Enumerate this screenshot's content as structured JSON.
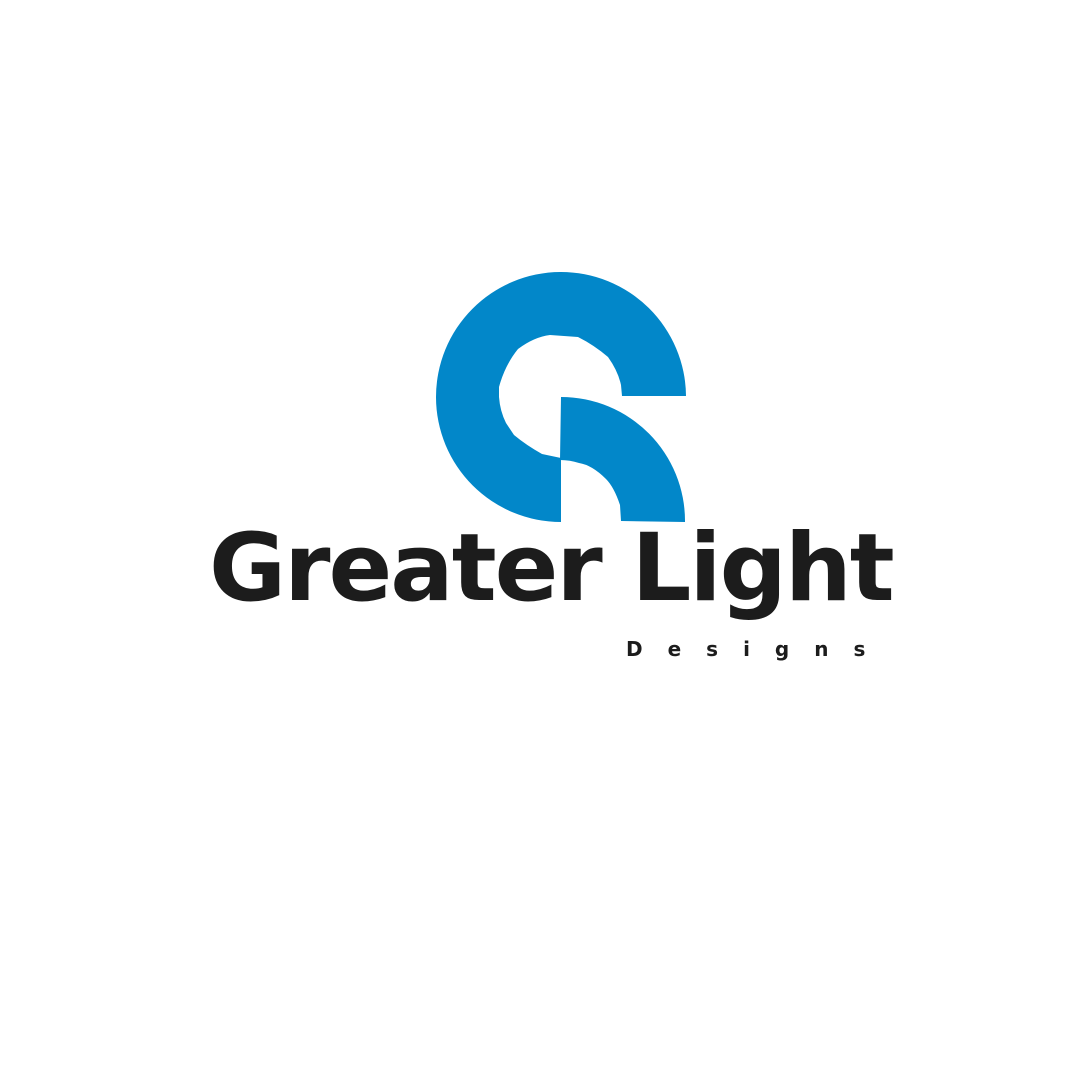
{
  "logo": {
    "brand_name": "Greater Light",
    "tagline": "Designs",
    "mark_icon": "gl-monogram-icon",
    "colors": {
      "mark": "#0287c9",
      "text": "#1c1c1c",
      "background": "#ffffff"
    }
  }
}
